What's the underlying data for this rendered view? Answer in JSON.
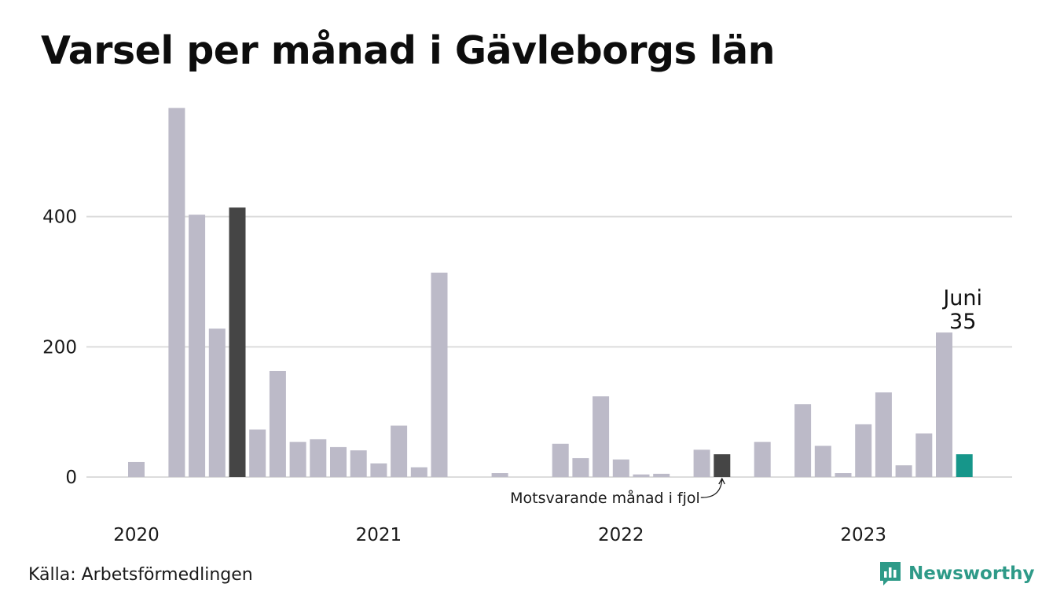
{
  "title": "Varsel per månad i Gävleborgs län",
  "source": "Källa: Arbetsförmedlingen",
  "brand": "Newsworthy",
  "annotation": "Motsvarande månad i fjol",
  "latest": {
    "month": "Juni",
    "value": "35"
  },
  "colors": {
    "bar": "#bcbac8",
    "highlight": "#454545",
    "latest": "#16968a",
    "grid": "#dcdcdc",
    "brand": "#2e9a88"
  },
  "chart_data": {
    "type": "bar",
    "title": "Varsel per månad i Gävleborgs län",
    "xlabel": "",
    "ylabel": "",
    "ylim": [
      0,
      600
    ],
    "yticks": [
      0,
      200,
      400
    ],
    "year_labels": [
      {
        "label": "2020",
        "index": 0
      },
      {
        "label": "2021",
        "index": 12
      },
      {
        "label": "2022",
        "index": 24
      },
      {
        "label": "2023",
        "index": 36
      }
    ],
    "categories": [
      "2020-01",
      "2020-02",
      "2020-03",
      "2020-04",
      "2020-05",
      "2020-06",
      "2020-07",
      "2020-08",
      "2020-09",
      "2020-10",
      "2020-11",
      "2020-12",
      "2021-01",
      "2021-02",
      "2021-03",
      "2021-04",
      "2021-05",
      "2021-06",
      "2021-07",
      "2021-08",
      "2021-09",
      "2021-10",
      "2021-11",
      "2021-12",
      "2022-01",
      "2022-02",
      "2022-03",
      "2022-04",
      "2022-05",
      "2022-06",
      "2022-07",
      "2022-08",
      "2022-09",
      "2022-10",
      "2022-11",
      "2022-12",
      "2023-01",
      "2023-02",
      "2023-03",
      "2023-04",
      "2023-05",
      "2023-06"
    ],
    "values": [
      23,
      0,
      567,
      403,
      228,
      414,
      73,
      163,
      54,
      58,
      46,
      41,
      21,
      79,
      15,
      314,
      0,
      0,
      6,
      0,
      0,
      51,
      29,
      124,
      27,
      4,
      5,
      0,
      42,
      35,
      0,
      54,
      0,
      112,
      48,
      6,
      81,
      130,
      18,
      67,
      222,
      35
    ],
    "highlight_indices": [
      5,
      17,
      29
    ],
    "latest_index": 41,
    "grid": true,
    "legend": "none"
  }
}
